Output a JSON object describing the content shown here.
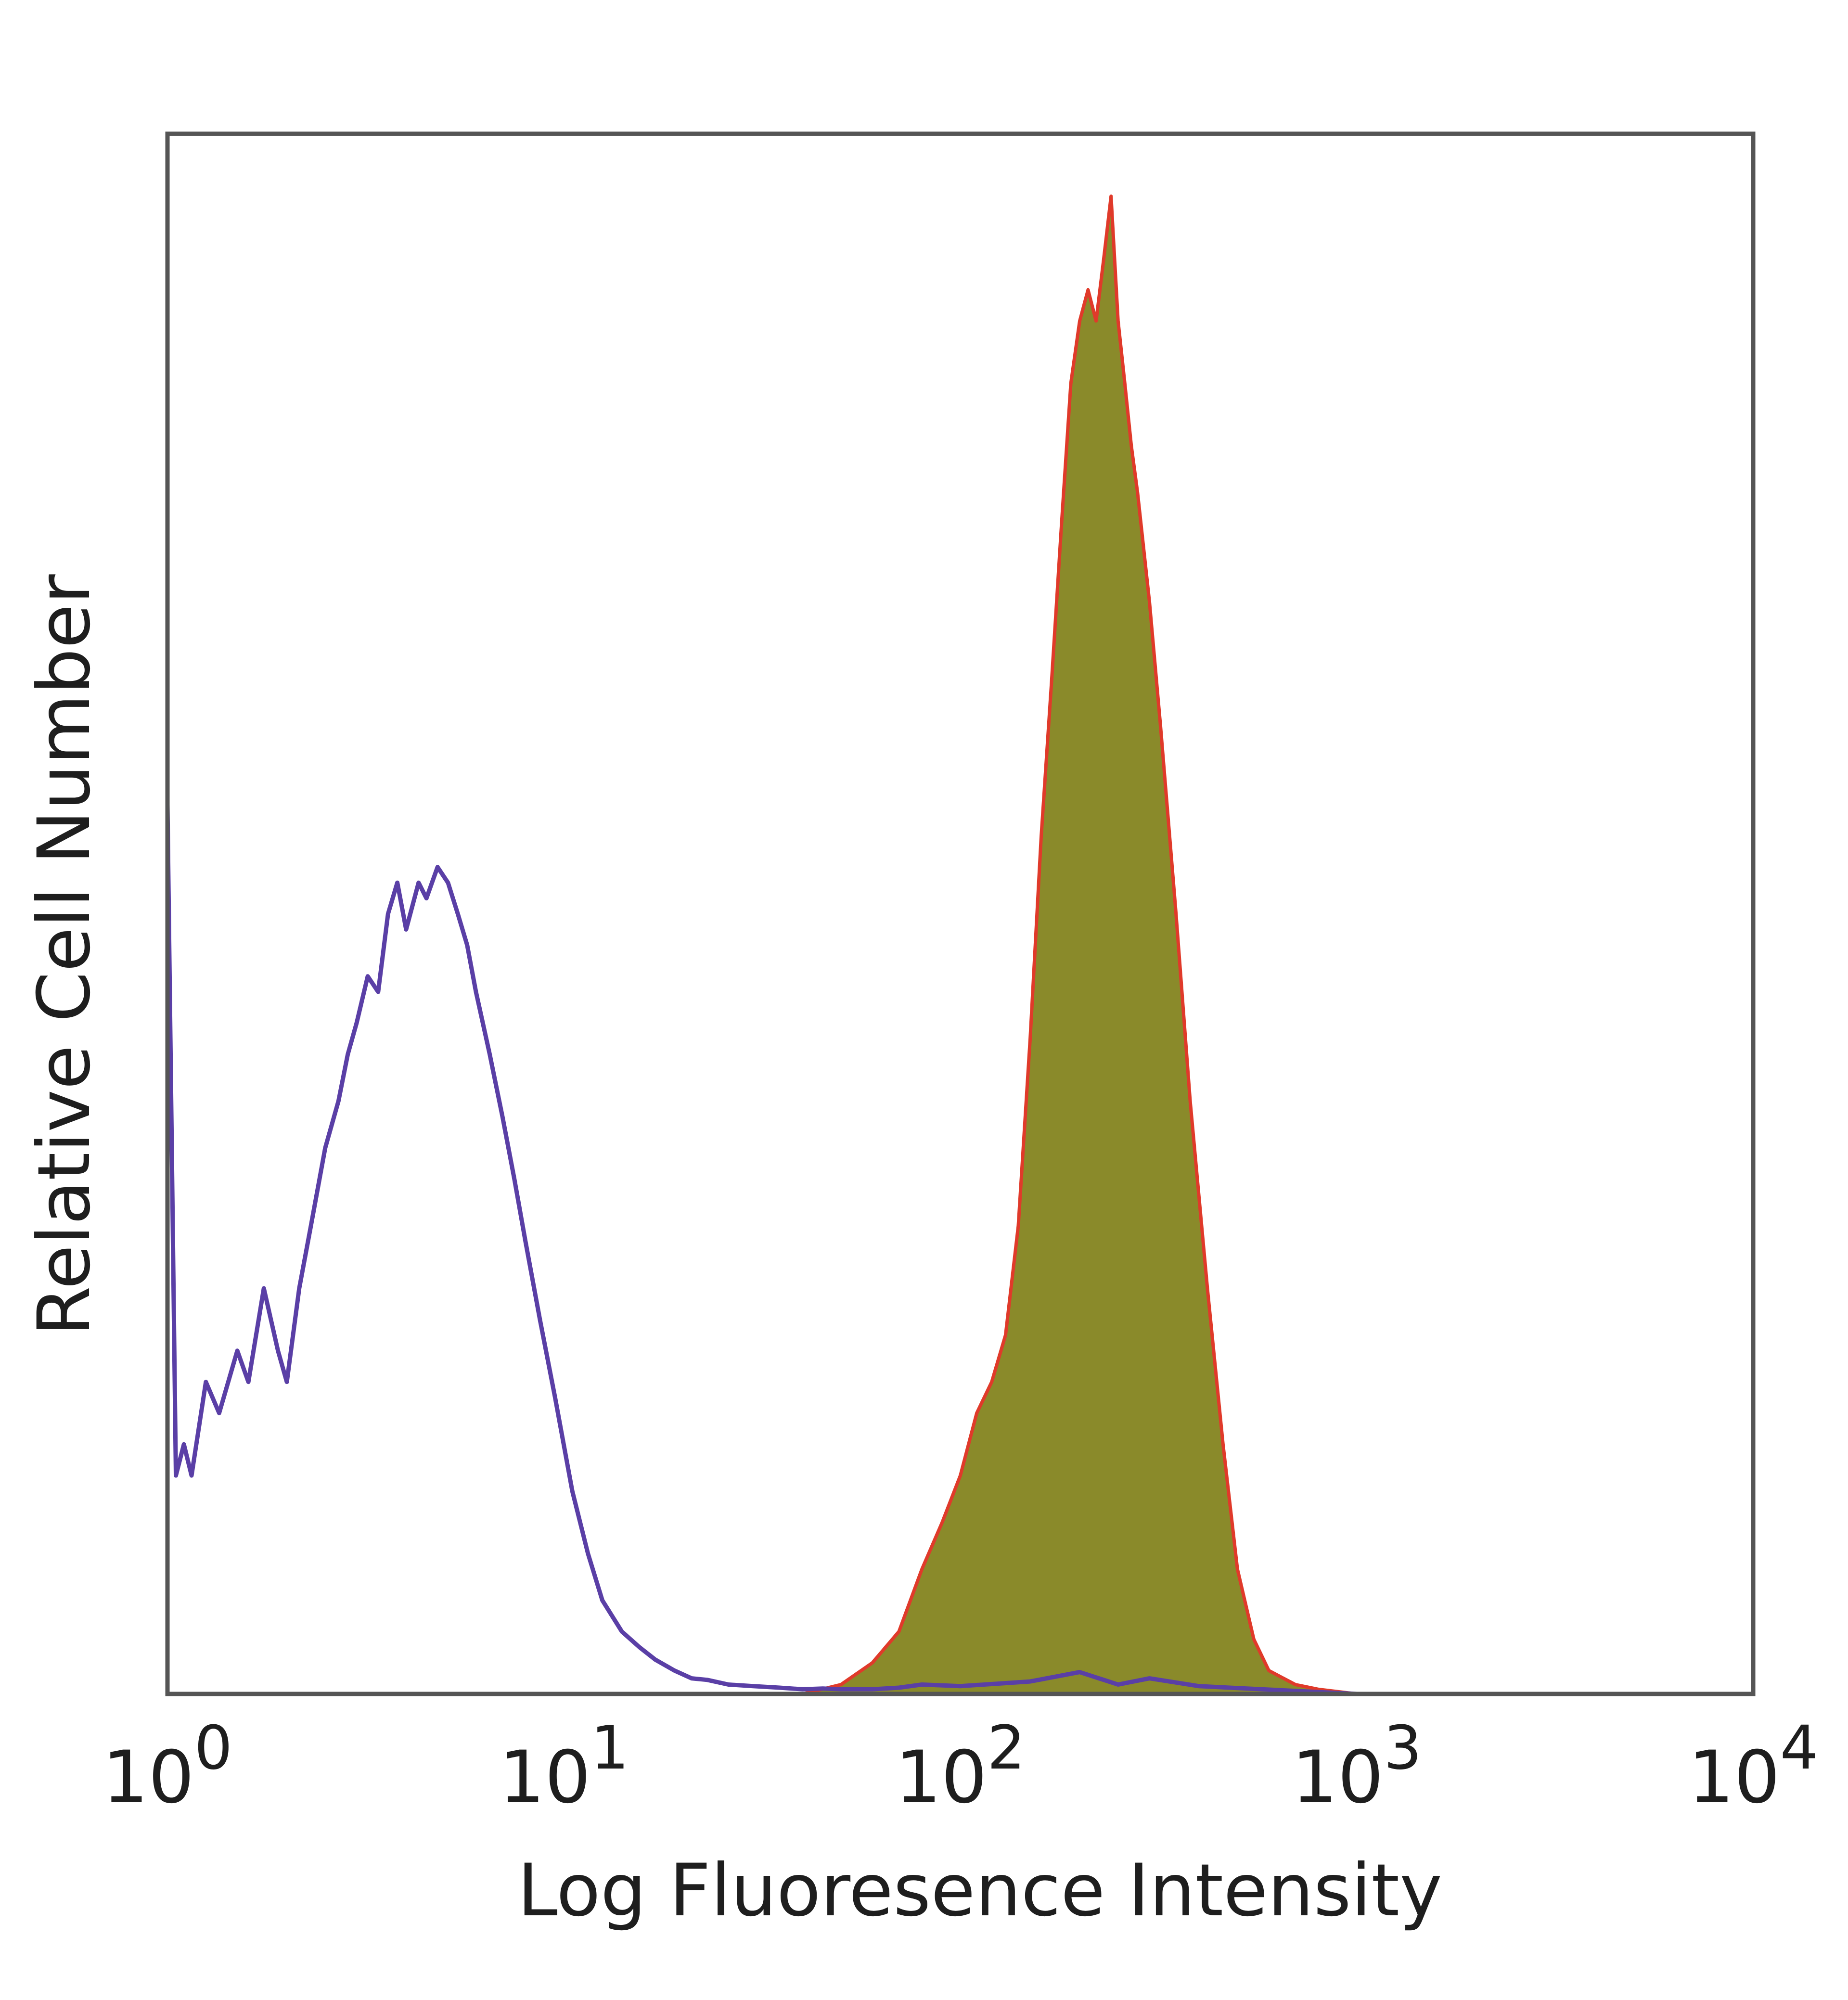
{
  "chart_data": {
    "type": "area",
    "xlabel": "Log Fluoresence Intensity",
    "ylabel": "Relative Cell Number",
    "xscale": "log",
    "xlim": [
      1,
      10000
    ],
    "ylim": [
      0,
      100
    ],
    "grid": false,
    "legend": "none",
    "x_ticks": [
      {
        "base": "10",
        "exp": "0",
        "value": 1
      },
      {
        "base": "10",
        "exp": "1",
        "value": 10
      },
      {
        "base": "10",
        "exp": "2",
        "value": 100
      },
      {
        "base": "10",
        "exp": "3",
        "value": 1000
      },
      {
        "base": "10",
        "exp": "4",
        "value": 10000
      }
    ],
    "colors": {
      "frame": "#555555",
      "control_line": "#5a3fa6",
      "stained_fill": "#8a8a2a",
      "stained_line": "#e03a2a"
    },
    "series": [
      {
        "style": "line",
        "color": "#5a3fa6",
        "x": [
          1.0,
          1.05,
          1.1,
          1.15,
          1.25,
          1.35,
          1.5,
          1.6,
          1.75,
          1.9,
          2.0,
          2.15,
          2.3,
          2.5,
          2.7,
          2.85,
          3.0,
          3.2,
          3.4,
          3.6,
          3.8,
          4.0,
          4.3,
          4.5,
          4.8,
          5.1,
          5.4,
          5.7,
          6.0,
          6.5,
          7.0,
          7.5,
          8.0,
          8.7,
          9.5,
          10.5,
          11.5,
          12.5,
          14,
          15.5,
          17,
          19,
          21,
          23,
          26,
          30,
          35,
          40,
          45,
          50,
          60,
          70,
          80,
          100,
          150,
          200,
          250,
          300,
          400,
          1000,
          10000
        ],
        "y": [
          57,
          14,
          16,
          14,
          20,
          18,
          22,
          20,
          26,
          22,
          20,
          26,
          30,
          35,
          38,
          41,
          43,
          46,
          45,
          50,
          52,
          49,
          52,
          51,
          53,
          52,
          50,
          48,
          45,
          41,
          37,
          33,
          29,
          24,
          19,
          13,
          9,
          6,
          4,
          3,
          2.2,
          1.5,
          1.0,
          0.9,
          0.6,
          0.5,
          0.4,
          0.3,
          0.35,
          0.3,
          0.3,
          0.4,
          0.6,
          0.5,
          0.8,
          1.4,
          0.6,
          1.0,
          0.5,
          0,
          0
        ]
      },
      {
        "style": "filled",
        "fill": "#8a8a2a",
        "color": "#e03a2a",
        "x": [
          40,
          50,
          60,
          70,
          80,
          90,
          100,
          110,
          120,
          130,
          140,
          150,
          160,
          170,
          180,
          190,
          200,
          210,
          220,
          230,
          240,
          250,
          260,
          270,
          280,
          300,
          320,
          350,
          380,
          420,
          460,
          500,
          550,
          600,
          700,
          800,
          1000
        ],
        "y": [
          0,
          0.6,
          2,
          4,
          8,
          11,
          14,
          18,
          20,
          23,
          30,
          42,
          55,
          65,
          75,
          84,
          88,
          90,
          88,
          92,
          96,
          88,
          84,
          80,
          77,
          70,
          62,
          50,
          38,
          26,
          16,
          8,
          3.5,
          1.5,
          0.6,
          0.3,
          0
        ]
      }
    ]
  }
}
